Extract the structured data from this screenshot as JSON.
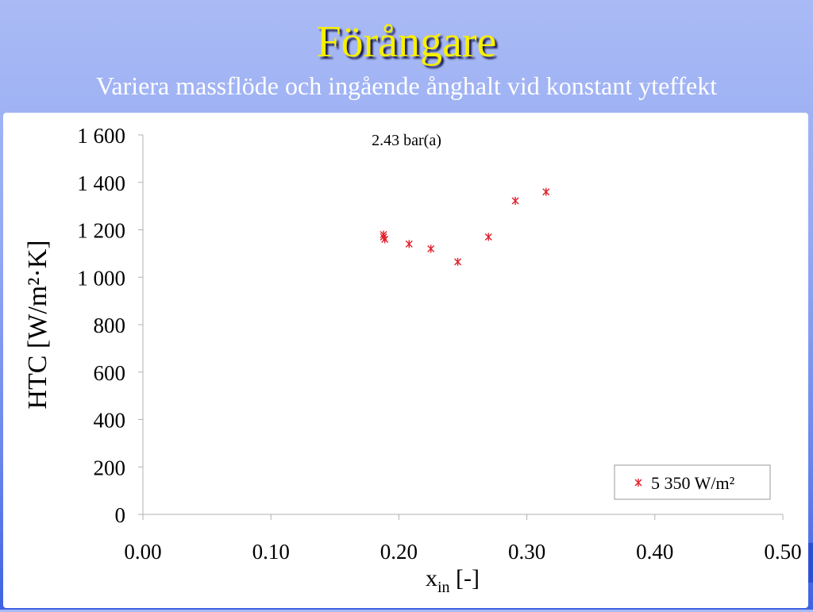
{
  "slide": {
    "title": "Förångare",
    "subtitle": "Variera massflöde och ingående ånghalt vid konstant yteffekt"
  },
  "chart_data": {
    "type": "scatter",
    "title": "2.43 bar(a)",
    "ylabel": "HTC [W/m²·K]",
    "xlabel_main": "x",
    "xlabel_sub": "in",
    "xlabel_suffix": " [-]",
    "xlim": [
      0.0,
      0.5
    ],
    "ylim": [
      0,
      1600
    ],
    "xticks": [
      0.0,
      0.1,
      0.2,
      0.3,
      0.4,
      0.5
    ],
    "xtick_labels": [
      "0.00",
      "0.10",
      "0.20",
      "0.30",
      "0.40",
      "0.50"
    ],
    "yticks": [
      0,
      200,
      400,
      600,
      800,
      1000,
      1200,
      1400,
      1600
    ],
    "ytick_labels": [
      "0",
      "200",
      "400",
      "600",
      "800",
      "1 000",
      "1 200",
      "1 400",
      "1 600"
    ],
    "grid": false,
    "legend_position": "bottom-right",
    "series": [
      {
        "name": "5 350 W/m²",
        "marker": "star",
        "color": "#e0202a",
        "points": [
          {
            "x": 0.188,
            "y": 1180
          },
          {
            "x": 0.188,
            "y": 1170
          },
          {
            "x": 0.189,
            "y": 1160
          },
          {
            "x": 0.208,
            "y": 1140
          },
          {
            "x": 0.225,
            "y": 1120
          },
          {
            "x": 0.246,
            "y": 1065
          },
          {
            "x": 0.27,
            "y": 1170
          },
          {
            "x": 0.291,
            "y": 1322
          },
          {
            "x": 0.315,
            "y": 1360
          }
        ]
      }
    ]
  }
}
